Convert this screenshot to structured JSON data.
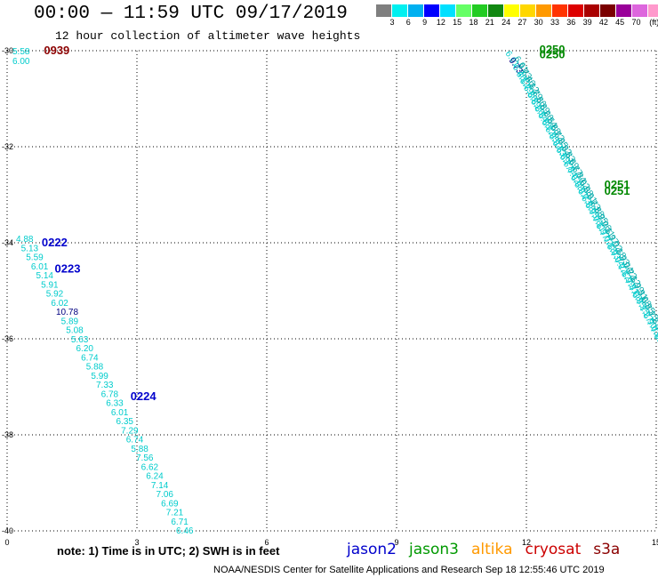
{
  "header": {
    "title": "00:00 — 11:59 UTC 09/17/2019",
    "subtitle": "12 hour collection of altimeter wave heights"
  },
  "legend": {
    "unit": "(ft)",
    "colors": [
      "#808080",
      "#00ffff",
      "#00bfff",
      "#0000ff",
      "#00ffff",
      "#00ff00",
      "#00c000",
      "#008000",
      "#ffff00",
      "#ffd700",
      "#ffa500",
      "#ff4500",
      "#ff0000",
      "#c00000",
      "#800000",
      "#a000a0",
      "#ff00ff",
      "#ff8080",
      "#000000"
    ],
    "colors_display": [
      "#7f7f7f",
      "#00f0f0",
      "#00b0f0",
      "#0000ff",
      "#00e0ff",
      "#66ff66",
      "#22cc22",
      "#118811",
      "#ffff00",
      "#ffd700",
      "#ff9900",
      "#ff3300",
      "#dd0000",
      "#aa0000",
      "#7a0000",
      "#990099",
      "#dd66dd",
      "#ff99cc",
      "#000000"
    ],
    "labels": [
      "3",
      "6",
      "9",
      "12",
      "15",
      "18",
      "21",
      "24",
      "27",
      "30",
      "33",
      "36",
      "39",
      "42",
      "45",
      "70"
    ]
  },
  "map": {
    "xticks": [
      "0",
      "3",
      "6",
      "9",
      "12",
      "15"
    ],
    "yticks": [
      "-30",
      "-32",
      "-34",
      "-36",
      "-38",
      "-40"
    ],
    "lon_range": [
      0,
      15
    ],
    "lat_range": [
      -40,
      -30
    ]
  },
  "passes": [
    {
      "time": "0939",
      "color": "#8b0000",
      "lon": 0.85,
      "lat": -30.0
    },
    {
      "time": "0222",
      "color": "#0000cc",
      "lon": 0.8,
      "lat": -34.0
    },
    {
      "time": "0223",
      "color": "#0000cc",
      "lon": 1.1,
      "lat": -34.55
    },
    {
      "time": "0224",
      "color": "#0000cc",
      "lon": 2.85,
      "lat": -37.2
    },
    {
      "time": "0250",
      "color": "#008800",
      "lon": 12.3,
      "lat": -29.98
    },
    {
      "time": "0250",
      "color": "#008800",
      "lon": 12.3,
      "lat": -30.08
    },
    {
      "time": "0251",
      "color": "#008800",
      "lon": 13.8,
      "lat": -32.8
    },
    {
      "time": "0251",
      "color": "#008800",
      "lon": 13.8,
      "lat": -32.93
    }
  ],
  "wave_labels_track1": [
    "5.58",
    "6.00"
  ],
  "wave_labels_track2": [
    "4.88",
    "5.13",
    "5.59",
    "6.01",
    "5.14",
    "5.91",
    "5.92",
    "6.02",
    "10.78",
    "5.89",
    "5.08",
    "5.63",
    "6.20",
    "6.74",
    "5.88",
    "5.99",
    "7.33",
    "6.78",
    "6.33",
    "6.01",
    "6.35",
    "7.29",
    "6.74",
    "5.88",
    "7.56",
    "6.62",
    "6.24",
    "7.14",
    "7.06",
    "6.69",
    "7.21",
    "6.71",
    "6.46"
  ],
  "wave_colors_track2": [
    "#00cccc",
    "#00cccc",
    "#00cccc",
    "#00cccc",
    "#00cccc",
    "#00cccc",
    "#00cccc",
    "#00cccc",
    "#000080",
    "#00cccc",
    "#00cccc",
    "#00cccc",
    "#00cccc",
    "#00cccc",
    "#00cccc",
    "#00cccc",
    "#00cccc",
    "#00cccc",
    "#00cccc",
    "#00cccc",
    "#00cccc",
    "#00cccc",
    "#00cccc",
    "#00cccc",
    "#00cccc",
    "#00cccc",
    "#00cccc",
    "#00cccc",
    "#00cccc",
    "#00cccc",
    "#00cccc",
    "#00cccc",
    "#00cccc"
  ],
  "wave_labels_track3": [
    "6.61",
    "9.73",
    "6.46",
    "6.12",
    "6.79",
    "6.86",
    "6.89",
    "6.26",
    "6.54",
    "6.88",
    "6.72",
    "6.95",
    "6.92",
    "6.83",
    "6.69",
    "6.77",
    "6.84",
    "7.02",
    "6.98",
    "6.91",
    "6.73",
    "6.88",
    "6.95",
    "7.06",
    "7.11",
    "6.97",
    "7.02",
    "7.18",
    "6.93",
    "7.04",
    "7.22",
    "7.12",
    "6.99",
    "7.31",
    "7.08",
    "6.85",
    "7.15",
    "7.27",
    "6.90",
    "7.03",
    "7.19",
    "6.88"
  ],
  "footer": {
    "note": "note:  1) Time is in UTC;  2) SWH is in feet",
    "credit": "NOAA/NESDIS Center for Satellite Applications and Research    Sep 18 12:55:46 UTC 2019"
  },
  "satellites": [
    {
      "name": "jason2",
      "color": "#0000cc"
    },
    {
      "name": "jason3",
      "color": "#009900"
    },
    {
      "name": "altika",
      "color": "#ff9900"
    },
    {
      "name": "cryosat",
      "color": "#cc0000"
    },
    {
      "name": "s3a",
      "color": "#8b0000"
    }
  ]
}
